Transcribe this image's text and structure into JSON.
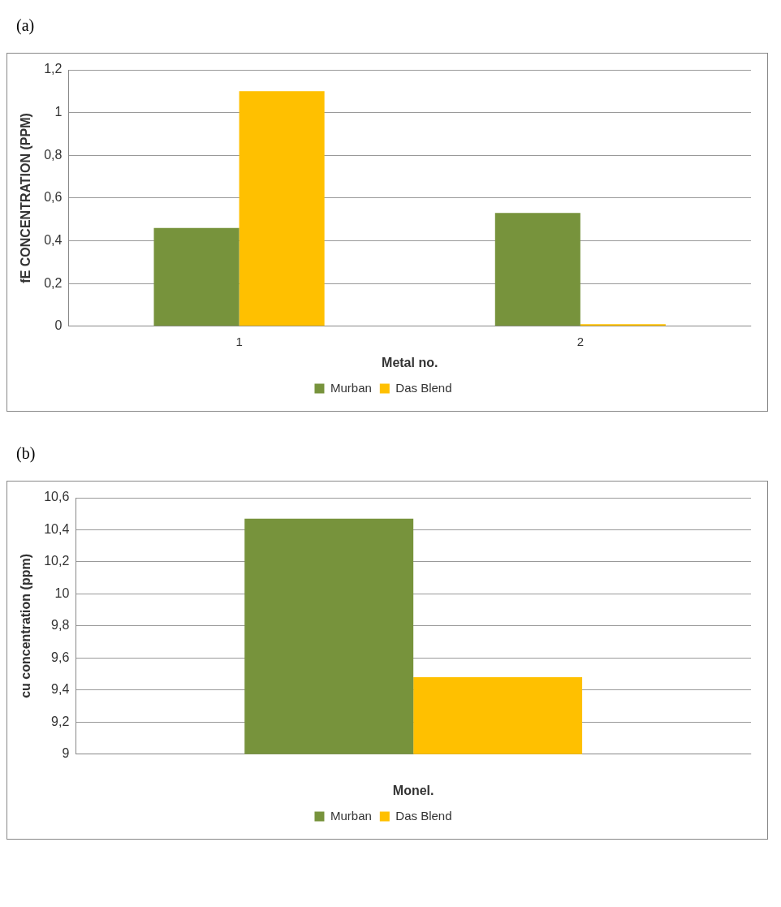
{
  "chart_data": [
    {
      "type": "bar",
      "annotations": [
        "(a)"
      ],
      "xlabel": "Metal no.",
      "ylabel": "fE CONCENTRATION (PPM)",
      "categories": [
        "1",
        "2"
      ],
      "series": [
        {
          "name": "Murban",
          "color": "#77933c",
          "values": [
            0.46,
            0.53
          ]
        },
        {
          "name": "Das Blend",
          "color": "#ffc000",
          "values": [
            1.1,
            0.01
          ]
        }
      ],
      "ylim": [
        0,
        1.2
      ],
      "yticks": [
        0,
        {
          "value": 0.2,
          "label": "0,2"
        },
        {
          "value": 0.4,
          "label": "0,4"
        },
        {
          "value": 0.6,
          "label": "0,6"
        },
        {
          "value": 0.8,
          "label": "0,8"
        },
        1,
        {
          "value": 1.2,
          "label": "1,2"
        }
      ],
      "grid": "y",
      "legend": "bottom"
    },
    {
      "type": "bar",
      "annotations": [
        "(b)"
      ],
      "xlabel": "Monel.",
      "ylabel": "cu concentration (ppm)",
      "categories": [
        null
      ],
      "series": [
        {
          "name": "Murban",
          "color": "#77933c",
          "values": [
            10.47
          ]
        },
        {
          "name": "Das Blend",
          "color": "#ffc000",
          "values": [
            9.48
          ]
        }
      ],
      "ylim": [
        9,
        10.6
      ],
      "yticks": [
        9,
        {
          "value": 9.2,
          "label": "9,2"
        },
        {
          "value": 9.4,
          "label": "9,4"
        },
        {
          "value": 9.6,
          "label": "9,6"
        },
        {
          "value": 9.8,
          "label": "9,8"
        },
        10,
        {
          "value": 10.2,
          "label": "10,2"
        },
        {
          "value": 10.4,
          "label": "10,4"
        },
        {
          "value": 10.6,
          "label": "10,6"
        }
      ],
      "grid": "y",
      "legend": "bottom"
    }
  ]
}
